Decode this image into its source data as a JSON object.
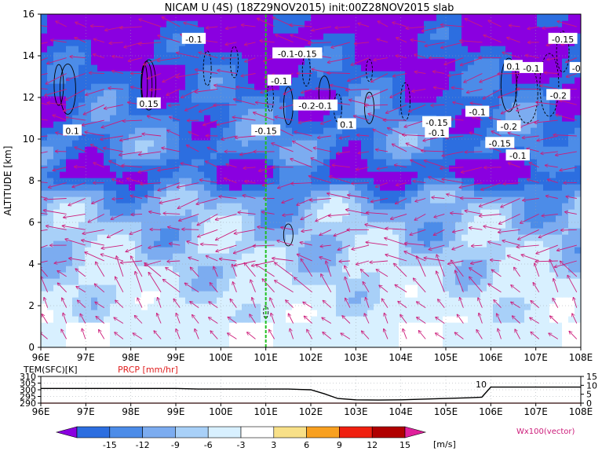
{
  "title": "NICAM U (4S) (18Z29NOV2015) init:00Z28NOV2015 slab",
  "colors": {
    "shade_levels": [
      "#8a00e0",
      "#2c6ee0",
      "#4c8ce8",
      "#7cacf0",
      "#a8d0f8",
      "#d8f0ff",
      "#ffffff",
      "#f8e088",
      "#f8a020",
      "#f02010",
      "#b00000",
      "#e0209c"
    ],
    "vector": "#cc1c7a",
    "marker_line": "#20c020",
    "precip_line": "#e02020",
    "temp_line": "#000000"
  },
  "chart_data": [
    {
      "type": "heatmap",
      "ylabel": "ALTITUDE [km]",
      "xlim": [
        96,
        108
      ],
      "ylim": [
        0,
        16
      ],
      "x_ticks": [
        "96E",
        "97E",
        "98E",
        "99E",
        "100E",
        "101E",
        "102E",
        "103E",
        "104E",
        "105E",
        "106E",
        "107E",
        "108E"
      ],
      "y_ticks": [
        "0",
        "2",
        "4",
        "6",
        "8",
        "10",
        "12",
        "14",
        "16"
      ],
      "marker_x": 101,
      "grid": true,
      "contour_labels": [
        {
          "text": "-0.1",
          "lon": 99.4,
          "alt": 14.8
        },
        {
          "text": "-0.1-0.15",
          "lon": 101.7,
          "alt": 14.1
        },
        {
          "text": "-0.1",
          "lon": 101.3,
          "alt": 12.8
        },
        {
          "text": "-0.2-0.1",
          "lon": 102.1,
          "alt": 11.6
        },
        {
          "text": "0.1",
          "lon": 102.8,
          "alt": 10.7
        },
        {
          "text": "-0.15",
          "lon": 101.0,
          "alt": 10.4
        },
        {
          "text": "0.15",
          "lon": 98.4,
          "alt": 11.7
        },
        {
          "text": "0.1",
          "lon": 96.7,
          "alt": 10.4
        },
        {
          "text": "-0.15",
          "lon": 104.8,
          "alt": 10.8
        },
        {
          "text": "-0.1",
          "lon": 105.7,
          "alt": 11.3
        },
        {
          "text": "-0.1",
          "lon": 104.8,
          "alt": 10.3
        },
        {
          "text": "-0.2",
          "lon": 106.4,
          "alt": 10.6
        },
        {
          "text": "-0.15",
          "lon": 106.2,
          "alt": 9.8
        },
        {
          "text": "-0.1",
          "lon": 106.6,
          "alt": 9.2
        },
        {
          "text": "-0.15",
          "lon": 107.6,
          "alt": 14.8
        },
        {
          "text": "0.1",
          "lon": 106.5,
          "alt": 13.5
        },
        {
          "text": "-0.1",
          "lon": 106.9,
          "alt": 13.4
        },
        {
          "text": "-0",
          "lon": 107.9,
          "alt": 13.4
        },
        {
          "text": "-0.2",
          "lon": 107.5,
          "alt": 12.1
        }
      ]
    },
    {
      "type": "line",
      "xlim": [
        96,
        108
      ],
      "series_label_left": "TEM(SFC)[K]",
      "series_label_left2": "PRCP [mm/hr]",
      "left_ticks": [
        "310",
        "305",
        "300",
        "295",
        "290"
      ],
      "right_ticks": [
        "15",
        "10",
        "5",
        "0"
      ],
      "x_ticks": [
        "96E",
        "97E",
        "98E",
        "99E",
        "100E",
        "101E",
        "102E",
        "103E",
        "104E",
        "105E",
        "106E",
        "107E",
        "108E"
      ],
      "inline_label": "10",
      "temp": {
        "x": [
          96,
          96.5,
          97,
          97.5,
          98,
          98.5,
          99,
          99.5,
          100,
          100.5,
          101,
          101.5,
          102,
          102.3,
          102.6,
          103,
          103.5,
          104,
          104.5,
          105,
          105.5,
          105.8,
          106,
          106.5,
          107,
          107.5,
          108
        ],
        "y": [
          301,
          301,
          301,
          301,
          301,
          301,
          301,
          300.5,
          300.5,
          300.5,
          300.5,
          300.5,
          300,
          297,
          293.5,
          292.5,
          292.3,
          292.5,
          293,
          293.5,
          294,
          294.5,
          302,
          302,
          302,
          302,
          302
        ]
      }
    }
  ],
  "colorbar": {
    "ticks": [
      "-15",
      "-12",
      "-9",
      "-6",
      "-3",
      "3",
      "6",
      "9",
      "12",
      "15"
    ],
    "unit": "[m/s]",
    "vector_label": "Wx100(vector)"
  }
}
